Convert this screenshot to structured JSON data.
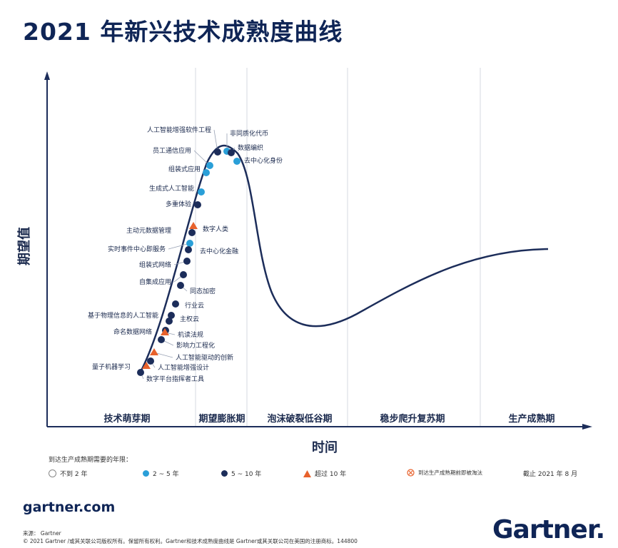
{
  "title": "2021 年新兴技术成熟度曲线",
  "chart_data": {
    "type": "hype-cycle",
    "ylabel": "期望值",
    "xlabel": "时间",
    "phases": [
      "技术萌芽期",
      "期望膨胀期",
      "泡沫破裂低谷期",
      "稳步爬升复苏期",
      "生产成熟期"
    ],
    "technologies": [
      {
        "name": "人工智能增强软件工程",
        "years": "5 ~ 10 年",
        "position": 0.268
      },
      {
        "name": "非同质化代币",
        "years": "2 ~ 5 年",
        "position": 0.279
      },
      {
        "name": "数据编织",
        "years": "5 ~ 10 年",
        "position": 0.289
      },
      {
        "name": "员工通信应用",
        "years": "2 ~ 5 年",
        "position": 0.255
      },
      {
        "name": "去中心化身份",
        "years": "2 ~ 5 年",
        "position": 0.298
      },
      {
        "name": "组装式应用",
        "years": "2 ~ 5 年",
        "position": 0.247
      },
      {
        "name": "生成式人工智能",
        "years": "2 ~ 5 年",
        "position": 0.24
      },
      {
        "name": "多重体验",
        "years": "5 ~ 10 年",
        "position": 0.235
      },
      {
        "name": "数字人类",
        "years": "超过 10 年",
        "position": 0.23
      },
      {
        "name": "主动元数据管理",
        "years": "5 ~ 10 年",
        "position": 0.228
      },
      {
        "name": "实时事件中心即服务",
        "years": "2 ~ 5 年",
        "position": 0.225
      },
      {
        "name": "去中心化金融",
        "years": "5 ~ 10 年",
        "position": 0.22
      },
      {
        "name": "组装式网络",
        "years": "5 ~ 10 年",
        "position": 0.215
      },
      {
        "name": "自集成应用",
        "years": "5 ~ 10 年",
        "position": 0.21
      },
      {
        "name": "同态加密",
        "years": "5 ~ 10 年",
        "position": 0.205
      },
      {
        "name": "行业云",
        "years": "5 ~ 10 年",
        "position": 0.198
      },
      {
        "name": "基于物理信息的人工智能",
        "years": "5 ~ 10 年",
        "position": 0.192
      },
      {
        "name": "主权云",
        "years": "5 ~ 10 年",
        "position": 0.19
      },
      {
        "name": "命名数据网络",
        "years": "5 ~ 10 年",
        "position": 0.184
      },
      {
        "name": "机读法规",
        "years": "超过 10 年",
        "position": 0.182
      },
      {
        "name": "影响力工程化",
        "years": "5 ~ 10 年",
        "position": 0.178
      },
      {
        "name": "人工智能驱动的创新",
        "years": "超过 10 年",
        "position": 0.172
      },
      {
        "name": "人工智能增强设计",
        "years": "5 ~ 10 年",
        "position": 0.165
      },
      {
        "name": "量子机器学习",
        "years": "超过 10 年",
        "position": 0.16
      },
      {
        "name": "数字平台指挥者工具",
        "years": "5 ~ 10 年",
        "position": 0.152
      }
    ]
  },
  "legend": {
    "title": "到达生产成熟期需要的年限：",
    "items": [
      {
        "label": "不到 2 年",
        "color": "#ffffff"
      },
      {
        "label": "2 ~ 5 年",
        "color": "#2a9fd8"
      },
      {
        "label": "5 ~ 10 年",
        "color": "#1c2d5a"
      },
      {
        "label": "超过 10 年",
        "color": "#e8622c"
      },
      {
        "label": "到达生产成熟期前即被淘汰",
        "color": "#e8622c"
      }
    ],
    "date": "截止 2021 年 8 月"
  },
  "colors": {
    "curve": "#1c2d5a",
    "navy": "#1c2d5a",
    "blue": "#2a9fd8",
    "orange": "#e8622c"
  },
  "footer": {
    "site": "gartner.com",
    "source": "来源： Gartner",
    "copyright": "© 2021 Gartner /或其关联公司版权所有。保留所有权利。Gartner和技术成熟度曲线是 Gartner或其关联公司在美国的注册商标。144800",
    "logo": "Gartner."
  }
}
